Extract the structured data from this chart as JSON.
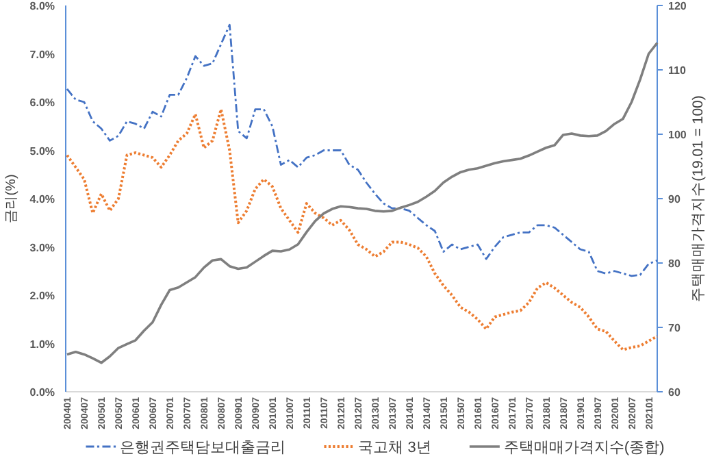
{
  "chart_data": {
    "type": "line",
    "ylabel": "금리(%)",
    "y2label": "주택매매가격지수(19.01 = 100)",
    "categories": [
      "200401",
      null,
      "200407",
      null,
      "200501",
      null,
      "200507",
      null,
      "200601",
      null,
      "200607",
      null,
      "200701",
      null,
      "200707",
      null,
      "200801",
      null,
      "200807",
      null,
      "200901",
      null,
      "200907",
      null,
      "201001",
      null,
      "201007",
      null,
      "201101",
      null,
      "201107",
      null,
      "201201",
      null,
      "201207",
      null,
      "201301",
      null,
      "201307",
      null,
      "201401",
      null,
      "201407",
      null,
      "201501",
      null,
      "201507",
      null,
      "201601",
      null,
      "201607",
      null,
      "201701",
      null,
      "201707",
      null,
      "201801",
      null,
      "201807",
      null,
      "201901",
      null,
      "201907",
      null,
      "202001",
      null,
      "202007",
      null,
      "202101",
      null
    ],
    "ylim": [
      0,
      8
    ],
    "yticks": [
      {
        "value": 0,
        "label": "0.0%"
      },
      {
        "value": 1,
        "label": "1.0%"
      },
      {
        "value": 2,
        "label": "2.0%"
      },
      {
        "value": 3,
        "label": "3.0%"
      },
      {
        "value": 4,
        "label": "4.0%"
      },
      {
        "value": 5,
        "label": "5.0%"
      },
      {
        "value": 6,
        "label": "6.0%"
      },
      {
        "value": 7,
        "label": "7.0%"
      },
      {
        "value": 8,
        "label": "8.0%"
      }
    ],
    "y2lim": [
      60,
      120
    ],
    "y2ticks": [
      60,
      70,
      80,
      90,
      100,
      110,
      120
    ],
    "legend": "bottom",
    "series": [
      {
        "name": "은행권주택담보대출금리",
        "color": "#4472c4",
        "line_style": "dashdot",
        "values": [
          6.27,
          6.05,
          6.0,
          5.6,
          5.45,
          5.2,
          5.3,
          5.6,
          5.55,
          5.45,
          5.8,
          5.7,
          6.15,
          6.15,
          6.5,
          6.95,
          6.75,
          6.8,
          7.2,
          7.6,
          5.4,
          5.25,
          5.85,
          5.85,
          5.5,
          4.7,
          4.8,
          4.65,
          4.85,
          4.9,
          5.0,
          5.0,
          5.0,
          4.7,
          4.6,
          4.33,
          4.1,
          3.9,
          3.8,
          3.8,
          3.75,
          3.6,
          3.45,
          3.33,
          2.9,
          3.05,
          2.95,
          3.0,
          3.05,
          2.75,
          3.0,
          3.2,
          3.25,
          3.3,
          3.3,
          3.45,
          3.45,
          3.4,
          3.25,
          3.1,
          2.95,
          2.9,
          2.5,
          2.45,
          2.5,
          2.45,
          2.4,
          2.42,
          2.65,
          2.72
        ]
      },
      {
        "name": "국고채 3년",
        "color": "#ed7d31",
        "line_style": "dotted",
        "values": [
          4.9,
          4.65,
          4.4,
          3.7,
          4.1,
          3.75,
          4.0,
          4.9,
          4.95,
          4.9,
          4.85,
          4.65,
          4.9,
          5.2,
          5.35,
          5.75,
          5.05,
          5.2,
          5.85,
          5.0,
          3.5,
          3.75,
          4.2,
          4.4,
          4.25,
          3.8,
          3.55,
          3.3,
          3.9,
          3.7,
          3.6,
          3.45,
          3.55,
          3.35,
          3.05,
          2.95,
          2.8,
          2.9,
          3.1,
          3.1,
          3.05,
          2.98,
          2.8,
          2.45,
          2.2,
          2.0,
          1.75,
          1.65,
          1.5,
          1.3,
          1.55,
          1.6,
          1.65,
          1.68,
          1.85,
          2.15,
          2.26,
          2.15,
          2.0,
          1.85,
          1.75,
          1.55,
          1.3,
          1.25,
          1.05,
          0.87,
          0.92,
          0.95,
          1.05,
          1.15
        ]
      },
      {
        "name": "주택매매가격지수(종합)",
        "color": "#7f7f7f",
        "line_style": "solid",
        "axis": "y2",
        "values": [
          65.8,
          66.2,
          65.8,
          65.2,
          64.5,
          65.5,
          66.8,
          67.4,
          68.0,
          69.5,
          70.8,
          73.5,
          75.8,
          76.2,
          77.0,
          77.8,
          79.3,
          80.4,
          80.6,
          79.5,
          79.1,
          79.3,
          80.2,
          81.1,
          81.9,
          81.8,
          82.1,
          82.9,
          84.8,
          86.5,
          87.7,
          88.4,
          88.8,
          88.7,
          88.5,
          88.4,
          88.1,
          88.0,
          88.1,
          88.6,
          89.0,
          89.5,
          90.3,
          91.2,
          92.5,
          93.4,
          94.1,
          94.5,
          94.7,
          95.1,
          95.5,
          95.8,
          96.0,
          96.2,
          96.7,
          97.3,
          97.9,
          98.3,
          99.9,
          100.1,
          99.8,
          99.7,
          99.8,
          100.5,
          101.6,
          102.4,
          105.0,
          108.5,
          112.5,
          114.2
        ]
      }
    ]
  }
}
